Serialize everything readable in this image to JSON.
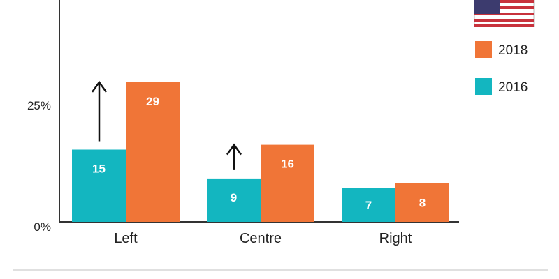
{
  "chart_data": {
    "type": "bar",
    "categories": [
      "Left",
      "Centre",
      "Right"
    ],
    "series": [
      {
        "name": "2016",
        "values": [
          15,
          9,
          7
        ],
        "color": "#13b6c0"
      },
      {
        "name": "2018",
        "values": [
          29,
          16,
          8
        ],
        "color": "#f07537"
      }
    ],
    "y_ticks": [
      "0%",
      "25%"
    ],
    "ylim": [
      0,
      46
    ],
    "legend_placement": "top-right",
    "legend_icon": "us-flag-icon",
    "annotations": [
      {
        "type": "up-arrow",
        "category": "Left",
        "from": 15,
        "to": 29
      },
      {
        "type": "up-arrow",
        "category": "Centre",
        "from": 9,
        "to": 16
      }
    ],
    "grid": false
  }
}
